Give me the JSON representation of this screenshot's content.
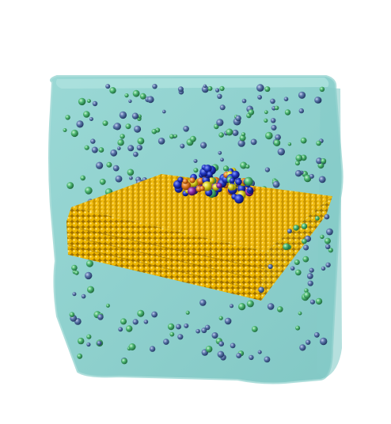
{
  "scene": {
    "description_colors": {
      "background": "#ffffff",
      "water_box": "#7ecbc8",
      "water_box_edge": "#a9dedb",
      "gold_atom": "#e6a800",
      "gold_atom_highlight": "#ffd84a",
      "sodium_ion": "#3f9f62",
      "chloride_ion": "#4f6a9a",
      "protein_blue": "#1a2fb0",
      "protein_yellow": "#d8d020",
      "protein_orange": "#e07820",
      "protein_purple": "#8a2aa0"
    },
    "icons": {
      "water_box": "water-box-icon",
      "gold_slab": "gold-slab-icon",
      "protein": "protein-cluster-icon",
      "ion": "ion-sphere-icon"
    }
  }
}
